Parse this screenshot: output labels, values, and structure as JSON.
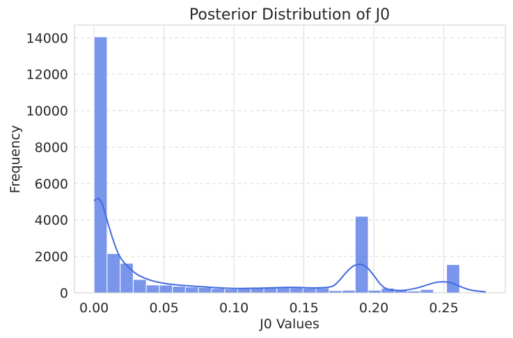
{
  "chart_data": {
    "type": "bar",
    "title": "Posterior Distribution of J0",
    "xlabel": "J0 Values",
    "ylabel": "Frequency",
    "xlim": [
      -0.014,
      0.294
    ],
    "ylim": [
      0,
      14700
    ],
    "xticks": [
      "0.00",
      "0.05",
      "0.10",
      "0.15",
      "0.20",
      "0.25"
    ],
    "xtick_values": [
      0.0,
      0.05,
      0.1,
      0.15,
      0.2,
      0.25
    ],
    "yticks": [
      "0",
      "2000",
      "4000",
      "6000",
      "8000",
      "10000",
      "12000",
      "14000"
    ],
    "ytick_values": [
      0,
      2000,
      4000,
      6000,
      8000,
      10000,
      12000,
      14000
    ],
    "grid": true,
    "bin_width": 0.00933,
    "bins_start": [
      0.0,
      0.00933,
      0.01867,
      0.028,
      0.03733,
      0.04667,
      0.056,
      0.06533,
      0.07467,
      0.084,
      0.09333,
      0.10267,
      0.112,
      0.12133,
      0.13067,
      0.14,
      0.14933,
      0.15867,
      0.168,
      0.17733,
      0.18667,
      0.196,
      0.20533,
      0.21467,
      0.224,
      0.23333,
      0.24267,
      0.252
    ],
    "counts": [
      14050,
      2150,
      1620,
      730,
      430,
      420,
      360,
      320,
      290,
      240,
      210,
      230,
      250,
      320,
      300,
      280,
      250,
      260,
      120,
      140,
      4200,
      140,
      250,
      130,
      100,
      180,
      0,
      1550
    ],
    "kde": {
      "x": [
        0.0,
        0.003,
        0.006,
        0.01,
        0.015,
        0.02,
        0.03,
        0.04,
        0.05,
        0.06,
        0.08,
        0.1,
        0.12,
        0.14,
        0.16,
        0.17,
        0.175,
        0.18,
        0.185,
        0.19,
        0.195,
        0.2,
        0.205,
        0.21,
        0.22,
        0.23,
        0.24,
        0.245,
        0.25,
        0.255,
        0.26,
        0.265,
        0.27,
        0.28
      ],
      "y": [
        5050,
        5180,
        4850,
        3800,
        2600,
        1800,
        1050,
        700,
        520,
        430,
        320,
        240,
        260,
        300,
        270,
        350,
        650,
        1100,
        1450,
        1560,
        1400,
        950,
        450,
        200,
        130,
        250,
        480,
        580,
        600,
        550,
        400,
        250,
        140,
        50
      ]
    },
    "colors": {
      "bar_fill": "#4169e1",
      "bar_opacity": 0.7,
      "bar_edge": "#ffffff",
      "kde_line": "#4169e1",
      "grid": "#d9d9d9",
      "axes_edge": "#cccccc",
      "text": "#262626"
    }
  }
}
